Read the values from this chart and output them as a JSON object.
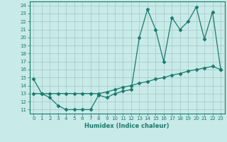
{
  "xlabel": "Humidex (Indice chaleur)",
  "line1_x": [
    0,
    1,
    2,
    3,
    4,
    5,
    6,
    7,
    8,
    9,
    10,
    11,
    12,
    13,
    14,
    15,
    16,
    17,
    18,
    19,
    20,
    21,
    22,
    23
  ],
  "line1_y": [
    14.8,
    13.0,
    12.5,
    11.5,
    11.0,
    11.0,
    11.0,
    11.0,
    12.8,
    12.5,
    13.0,
    13.3,
    13.5,
    20.0,
    23.5,
    21.0,
    17.0,
    22.5,
    21.0,
    22.0,
    23.8,
    19.8,
    23.2,
    16.0
  ],
  "line2_x": [
    0,
    1,
    2,
    3,
    4,
    5,
    6,
    7,
    8,
    9,
    10,
    11,
    12,
    13,
    14,
    15,
    16,
    17,
    18,
    19,
    20,
    21,
    22,
    23
  ],
  "line2_y": [
    13.0,
    13.0,
    13.0,
    13.0,
    13.0,
    13.0,
    13.0,
    13.0,
    13.0,
    13.2,
    13.5,
    13.8,
    14.0,
    14.3,
    14.5,
    14.8,
    15.0,
    15.3,
    15.5,
    15.8,
    16.0,
    16.2,
    16.4,
    16.0
  ],
  "line_color": "#1a7a6e",
  "bg_color": "#c8eae8",
  "grid_color": "#a0c8c8",
  "marker": "D",
  "marker_size": 2.5,
  "xlim": [
    -0.5,
    23.5
  ],
  "ylim": [
    10.5,
    24.5
  ],
  "yticks": [
    11,
    12,
    13,
    14,
    15,
    16,
    17,
    18,
    19,
    20,
    21,
    22,
    23,
    24
  ],
  "xticks": [
    0,
    1,
    2,
    3,
    4,
    5,
    6,
    7,
    8,
    9,
    10,
    11,
    12,
    13,
    14,
    15,
    16,
    17,
    18,
    19,
    20,
    21,
    22,
    23
  ],
  "tick_fontsize": 5,
  "xlabel_fontsize": 6,
  "linewidth": 0.9
}
